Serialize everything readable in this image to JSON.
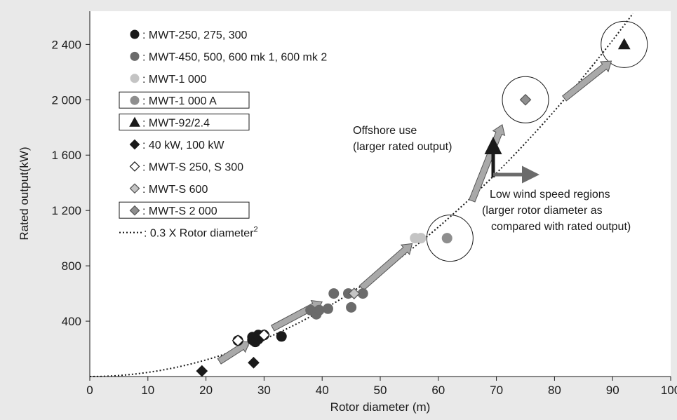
{
  "chart_data": {
    "type": "scatter",
    "xlabel": "Rotor diameter (m)",
    "ylabel": "Rated output(kW)",
    "xlim": [
      0,
      100
    ],
    "ylim": [
      0,
      2640
    ],
    "x_ticks": [
      0,
      10,
      20,
      30,
      40,
      50,
      60,
      70,
      80,
      90,
      100
    ],
    "x_tick_labels": [
      "0",
      "10",
      "20",
      "30",
      "40",
      "50",
      "60",
      "70",
      "80",
      "90",
      "100"
    ],
    "y_ticks": [
      400,
      800,
      1200,
      1600,
      2000,
      2400
    ],
    "y_tick_labels": [
      "400",
      "800",
      "1 200",
      "1 600",
      "2 000",
      "2 400"
    ],
    "grid": false,
    "legend_position": "top-left",
    "colors": {
      "background": "#e9e9e9",
      "plot_area": "#ffffff",
      "black": "#1a1a1a",
      "dark_gray": "#6b6b6b",
      "light_gray": "#c4c4c4",
      "medium_gray": "#8e8e8e",
      "arrow_fill": "#a9a9a9"
    },
    "series": [
      {
        "name": ": MWT-250, 275, 300",
        "marker": "circle",
        "fill": "black",
        "points": [
          [
            25.5,
            260
          ],
          [
            28,
            265
          ],
          [
            28,
            285
          ],
          [
            28.5,
            250
          ],
          [
            29,
            270
          ],
          [
            29,
            300
          ],
          [
            29.5,
            290
          ],
          [
            30,
            300
          ],
          [
            33,
            290
          ]
        ]
      },
      {
        "name": ": MWT-450, 500, 600 mk 1, 600 mk 2",
        "marker": "circle",
        "fill": "dark_gray",
        "points": [
          [
            38,
            480
          ],
          [
            39,
            450
          ],
          [
            39.5,
            480
          ],
          [
            41,
            490
          ],
          [
            42,
            600
          ],
          [
            44.5,
            600
          ],
          [
            45,
            500
          ],
          [
            47,
            600
          ]
        ]
      },
      {
        "name": ": MWT-1 000",
        "marker": "circle",
        "fill": "light_gray",
        "points": [
          [
            56,
            1000
          ],
          [
            57,
            1000
          ]
        ]
      },
      {
        "name": ": MWT-1 000 A",
        "marker": "circle",
        "fill": "medium_gray",
        "boxed": true,
        "points": [
          [
            61.5,
            1000
          ]
        ]
      },
      {
        "name": ": MWT-92/2.4",
        "marker": "triangle",
        "fill": "black",
        "boxed": true,
        "points": [
          [
            92,
            2400
          ]
        ]
      },
      {
        "name": ": 40 kW, 100 kW",
        "marker": "diamond",
        "fill": "black",
        "points": [
          [
            19.3,
            40
          ],
          [
            28.2,
            100
          ]
        ]
      },
      {
        "name": ": MWT-S 250, S 300",
        "marker": "diamond",
        "fill": "white",
        "points": [
          [
            25.5,
            260
          ],
          [
            30,
            300
          ]
        ]
      },
      {
        "name": ": MWT-S 600",
        "marker": "diamond",
        "fill": "light_gray",
        "points": [
          [
            45.5,
            600
          ]
        ]
      },
      {
        "name": ": MWT-S 2 000",
        "marker": "diamond",
        "fill": "medium_gray",
        "boxed": true,
        "points": [
          [
            75,
            2000
          ]
        ]
      }
    ],
    "curve": {
      "name": ": 0.3 X Rotor diameter",
      "superscript": "2",
      "style": "dotted",
      "coefficient": 0.3,
      "power": 2
    },
    "highlight_circles": [
      [
        62,
        1000
      ],
      [
        75,
        2000
      ],
      [
        92,
        2400
      ]
    ],
    "trend_arrows": [
      [
        [
          22.3,
          110
        ],
        [
          27.5,
          250
        ]
      ],
      [
        [
          31.5,
          350
        ],
        [
          40,
          540
        ]
      ],
      [
        [
          46.8,
          640
        ],
        [
          55.5,
          960
        ]
      ],
      [
        [
          65.8,
          1270
        ],
        [
          71,
          1820
        ]
      ],
      [
        [
          81.7,
          2010
        ],
        [
          89.8,
          2280
        ]
      ]
    ],
    "annotations": {
      "offshore_line1": "Offshore use",
      "offshore_line2": "(larger rated output)",
      "lowwind_line1": "Low wind speed regions",
      "lowwind_line2": "(larger rotor diameter as",
      "lowwind_line3": "compared with rated output)"
    }
  }
}
